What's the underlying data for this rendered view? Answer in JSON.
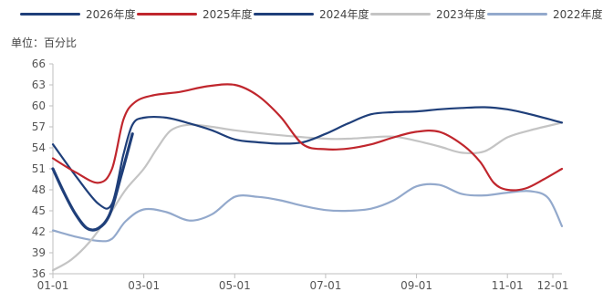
{
  "unit_label": "单位：百分比",
  "colors": {
    "axis": "#bfbfbf"
  },
  "chart_data": {
    "type": "line",
    "title": "",
    "xlabel": "",
    "ylabel": "",
    "ylim": [
      36,
      66
    ],
    "yticks": [
      36,
      39,
      42,
      45,
      48,
      51,
      54,
      57,
      60,
      63,
      66
    ],
    "x_ticks": [
      {
        "label": "01-01",
        "month": 1
      },
      {
        "label": "03-01",
        "month": 3
      },
      {
        "label": "05-01",
        "month": 5
      },
      {
        "label": "07-01",
        "month": 7
      },
      {
        "label": "09-01",
        "month": 9
      },
      {
        "label": "11-01",
        "month": 11
      },
      {
        "label": "12-01",
        "month": 12
      }
    ],
    "grid": false,
    "legend_position": "top",
    "series": [
      {
        "name": "2026年度",
        "color": "#1f3f7a",
        "width": 3.2,
        "points": [
          [
            1,
            51
          ],
          [
            1.25,
            47.5
          ],
          [
            1.5,
            44.5
          ],
          [
            1.75,
            42.5
          ],
          [
            2.0,
            42.5
          ],
          [
            2.25,
            44.5
          ],
          [
            2.5,
            50
          ],
          [
            2.75,
            56
          ]
        ]
      },
      {
        "name": "2025年度",
        "color": "#c0262d",
        "width": 2.2,
        "points": [
          [
            1,
            52.5
          ],
          [
            1.5,
            50.5
          ],
          [
            2,
            49
          ],
          [
            2.3,
            51
          ],
          [
            2.55,
            58
          ],
          [
            2.8,
            60.5
          ],
          [
            3.2,
            61.5
          ],
          [
            3.8,
            62
          ],
          [
            4.4,
            62.8
          ],
          [
            5,
            63
          ],
          [
            5.5,
            61.5
          ],
          [
            6,
            58.5
          ],
          [
            6.5,
            54.5
          ],
          [
            7,
            53.8
          ],
          [
            7.5,
            53.9
          ],
          [
            8,
            54.5
          ],
          [
            8.5,
            55.5
          ],
          [
            9,
            56.3
          ],
          [
            9.5,
            56.3
          ],
          [
            10,
            54.5
          ],
          [
            10.4,
            52
          ],
          [
            10.7,
            49
          ],
          [
            11,
            48
          ],
          [
            11.4,
            48.2
          ],
          [
            11.8,
            49.5
          ],
          [
            12.2,
            51
          ]
        ]
      },
      {
        "name": "2024年度",
        "color": "#1f3f7a",
        "width": 2.2,
        "points": [
          [
            1,
            54.5
          ],
          [
            1.5,
            50
          ],
          [
            2,
            46
          ],
          [
            2.3,
            46
          ],
          [
            2.55,
            53
          ],
          [
            2.75,
            57.3
          ],
          [
            3,
            58.3
          ],
          [
            3.5,
            58.3
          ],
          [
            4,
            57.5
          ],
          [
            4.5,
            56.5
          ],
          [
            5,
            55.2
          ],
          [
            5.5,
            54.8
          ],
          [
            6,
            54.6
          ],
          [
            6.5,
            54.8
          ],
          [
            7,
            56
          ],
          [
            7.5,
            57.5
          ],
          [
            8,
            58.8
          ],
          [
            8.5,
            59.1
          ],
          [
            9,
            59.2
          ],
          [
            9.5,
            59.5
          ],
          [
            10,
            59.7
          ],
          [
            10.5,
            59.8
          ],
          [
            11,
            59.5
          ],
          [
            11.5,
            58.8
          ],
          [
            12.2,
            57.6
          ]
        ]
      },
      {
        "name": "2023年度",
        "color": "#c4c4c4",
        "width": 2.2,
        "points": [
          [
            1,
            36.5
          ],
          [
            1.4,
            38
          ],
          [
            1.8,
            40.5
          ],
          [
            2.2,
            44
          ],
          [
            2.6,
            48
          ],
          [
            3,
            51
          ],
          [
            3.3,
            54
          ],
          [
            3.6,
            56.5
          ],
          [
            4,
            57.3
          ],
          [
            4.5,
            57
          ],
          [
            5,
            56.5
          ],
          [
            6,
            55.8
          ],
          [
            7,
            55.3
          ],
          [
            7.5,
            55.3
          ],
          [
            8,
            55.5
          ],
          [
            8.5,
            55.6
          ],
          [
            9,
            55
          ],
          [
            9.5,
            54.2
          ],
          [
            10,
            53.3
          ],
          [
            10.5,
            53.5
          ],
          [
            11,
            55.5
          ],
          [
            11.5,
            56.5
          ],
          [
            12.2,
            57.6
          ]
        ]
      },
      {
        "name": "2022年度",
        "color": "#93a9cc",
        "width": 2.2,
        "points": [
          [
            1,
            42.2
          ],
          [
            1.5,
            41.3
          ],
          [
            2,
            40.7
          ],
          [
            2.3,
            41
          ],
          [
            2.6,
            43.5
          ],
          [
            3,
            45.2
          ],
          [
            3.5,
            44.8
          ],
          [
            4,
            43.6
          ],
          [
            4.5,
            44.5
          ],
          [
            5,
            47
          ],
          [
            5.5,
            47
          ],
          [
            6,
            46.5
          ],
          [
            6.5,
            45.7
          ],
          [
            7,
            45.1
          ],
          [
            7.5,
            45
          ],
          [
            8,
            45.3
          ],
          [
            8.5,
            46.5
          ],
          [
            9,
            48.5
          ],
          [
            9.5,
            48.7
          ],
          [
            10,
            47.4
          ],
          [
            10.5,
            47.2
          ],
          [
            11,
            47.6
          ],
          [
            11.5,
            47.8
          ],
          [
            11.9,
            46.8
          ],
          [
            12.2,
            42.8
          ]
        ]
      }
    ]
  }
}
